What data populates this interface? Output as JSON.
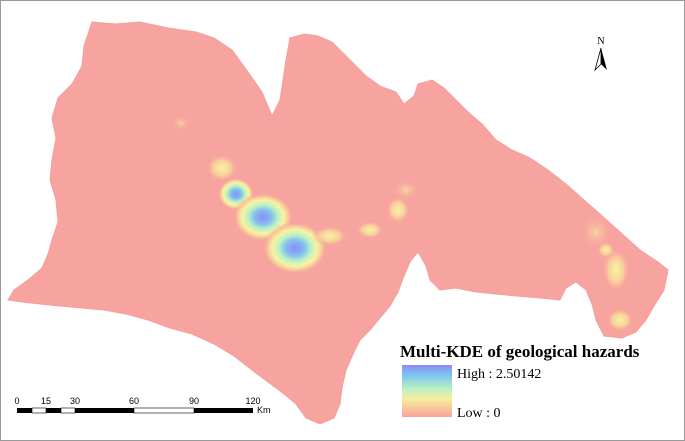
{
  "north_arrow": {
    "label": "N"
  },
  "legend": {
    "title": "Multi-KDE of geological hazards",
    "high_label": "High : 2.50142",
    "low_label": "Low : 0",
    "gradient_colors": [
      "#8c8cf5",
      "#7cc6ee",
      "#b7f0c2",
      "#f5f0a0",
      "#f8c898",
      "#f7a39f"
    ]
  },
  "scale_bar": {
    "ticks": [
      "0",
      "15",
      "30",
      "60",
      "90",
      "120"
    ],
    "unit": "Km"
  },
  "colors": {
    "background_density": "#f7a39f",
    "high_density": "#8c8cf5"
  }
}
